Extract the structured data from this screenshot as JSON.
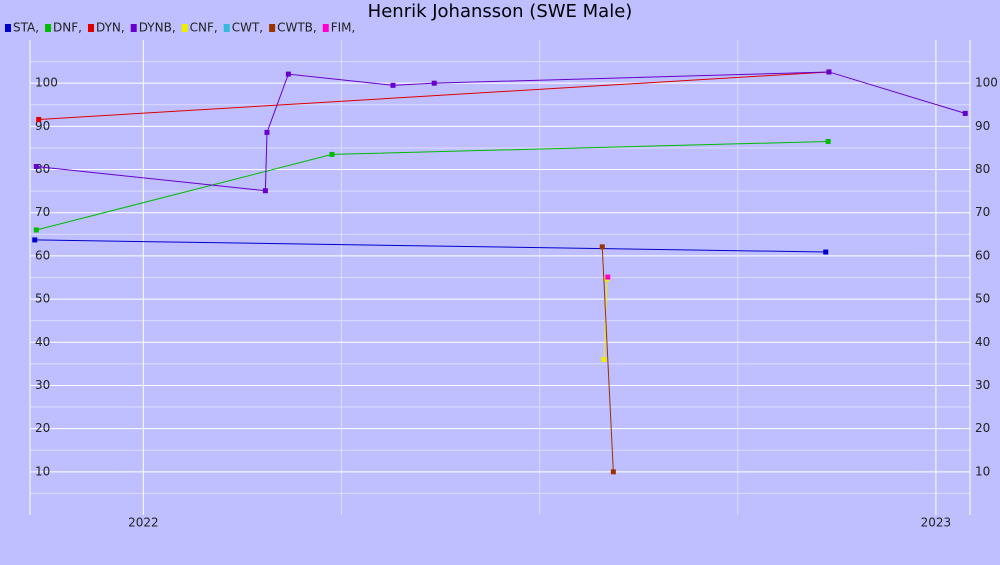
{
  "chart_data": {
    "type": "line",
    "title": "Henrik Johansson (SWE Male)",
    "xlim": [
      2021.857,
      2023.043
    ],
    "xticks": [
      {
        "value": 2022,
        "label": "2022"
      },
      {
        "value": 2023,
        "label": "2023"
      }
    ],
    "x_minor_ticks": [
      2022.25,
      2022.5,
      2022.75
    ],
    "ylim": [
      0,
      110
    ],
    "yticks": [
      10,
      20,
      30,
      40,
      50,
      60,
      70,
      80,
      90,
      100
    ],
    "y_minor_ticks": [
      5,
      15,
      25,
      35,
      45,
      55,
      65,
      75,
      85,
      95,
      105
    ],
    "grid": true,
    "series": [
      {
        "name": "STA,",
        "color": "#0000cc",
        "x": [
          2021.863,
          2022.861
        ],
        "values": [
          63.7,
          60.9
        ]
      },
      {
        "name": "DNF,",
        "color": "#00bb00",
        "x": [
          2021.865,
          2022.238,
          2022.864
        ],
        "values": [
          66.0,
          83.5,
          86.5
        ]
      },
      {
        "name": "DYN,",
        "color": "#dd0000",
        "x": [
          2021.868,
          2022.865
        ],
        "values": [
          91.6,
          102.6
        ]
      },
      {
        "name": "DYNB,",
        "color": "#6600cc",
        "x": [
          2021.865,
          2022.154,
          2022.156,
          2022.183,
          2022.315,
          2022.367,
          2022.865,
          2023.037
        ],
        "values": [
          80.7,
          75.1,
          88.6,
          102.1,
          99.5,
          100.0,
          102.6,
          93.0
        ]
      },
      {
        "name": "CNF,",
        "color": "#eeee00",
        "x": [
          2022.581,
          2022.585
        ],
        "values": [
          36.0,
          54.7
        ]
      },
      {
        "name": "CWT,",
        "color": "#33bbdd",
        "x": [],
        "values": []
      },
      {
        "name": "CWTB,",
        "color": "#993300",
        "x": [
          2022.579,
          2022.593
        ],
        "values": [
          62.1,
          10.0
        ]
      },
      {
        "name": "FIM,",
        "color": "#ff00cc",
        "x": [
          2022.586
        ],
        "values": [
          55.1
        ]
      }
    ]
  }
}
